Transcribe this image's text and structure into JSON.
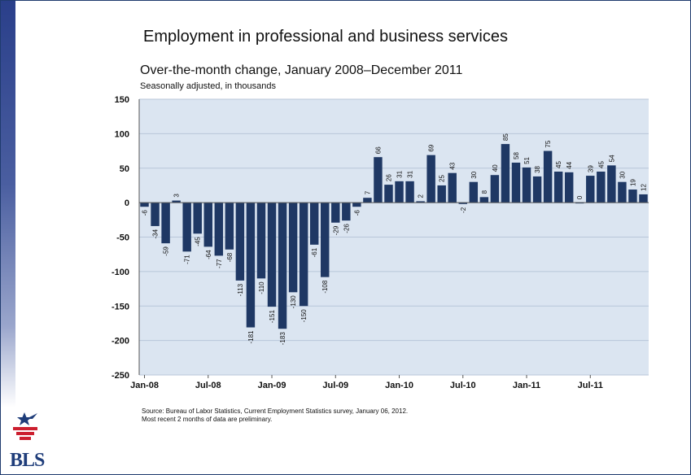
{
  "slide": {
    "title": "Employment in professional and business services",
    "subtitle": "Over-the-month change, January 2008–December 2011",
    "units": "Seasonally adjusted, in thousands",
    "source_line1": "Source: Bureau of Labor Statistics, Current Employment Statistics survey, January 06, 2012.",
    "source_line2": "Most recent 2 months of data are preliminary.",
    "logo_text": "BLS"
  },
  "colors": {
    "bar": "#1f3864",
    "plot_bg": "#dbe5f1",
    "grid": "#b8c6d9",
    "sidebar_top": "#2a3f8a",
    "logo_blue": "#1f3d7a",
    "logo_red": "#cc1f2f"
  },
  "chart_data": {
    "type": "bar",
    "title": "Employment in professional and business services",
    "subtitle": "Over-the-month change, January 2008–December 2011",
    "ylabel": "Seasonally adjusted, in thousands",
    "ylim": [
      -250,
      150
    ],
    "yticks": [
      150,
      100,
      50,
      0,
      -50,
      -100,
      -150,
      -200,
      -250
    ],
    "xtick_labels": [
      "Jan-08",
      "Jul-08",
      "Jan-09",
      "Jul-09",
      "Jan-10",
      "Jul-10",
      "Jan-11",
      "Jul-11"
    ],
    "xtick_every": 6,
    "grid": true,
    "values": [
      -6,
      -34,
      -59,
      3,
      -71,
      -45,
      -64,
      -77,
      -68,
      -113,
      -181,
      -110,
      -151,
      -183,
      -130,
      -150,
      -61,
      -108,
      -29,
      -26,
      -6,
      7,
      66,
      26,
      31,
      31,
      2,
      69,
      25,
      43,
      -2,
      30,
      8,
      40,
      85,
      58,
      51,
      38,
      75,
      45,
      44,
      0,
      39,
      45,
      54,
      30,
      19,
      12
    ]
  }
}
